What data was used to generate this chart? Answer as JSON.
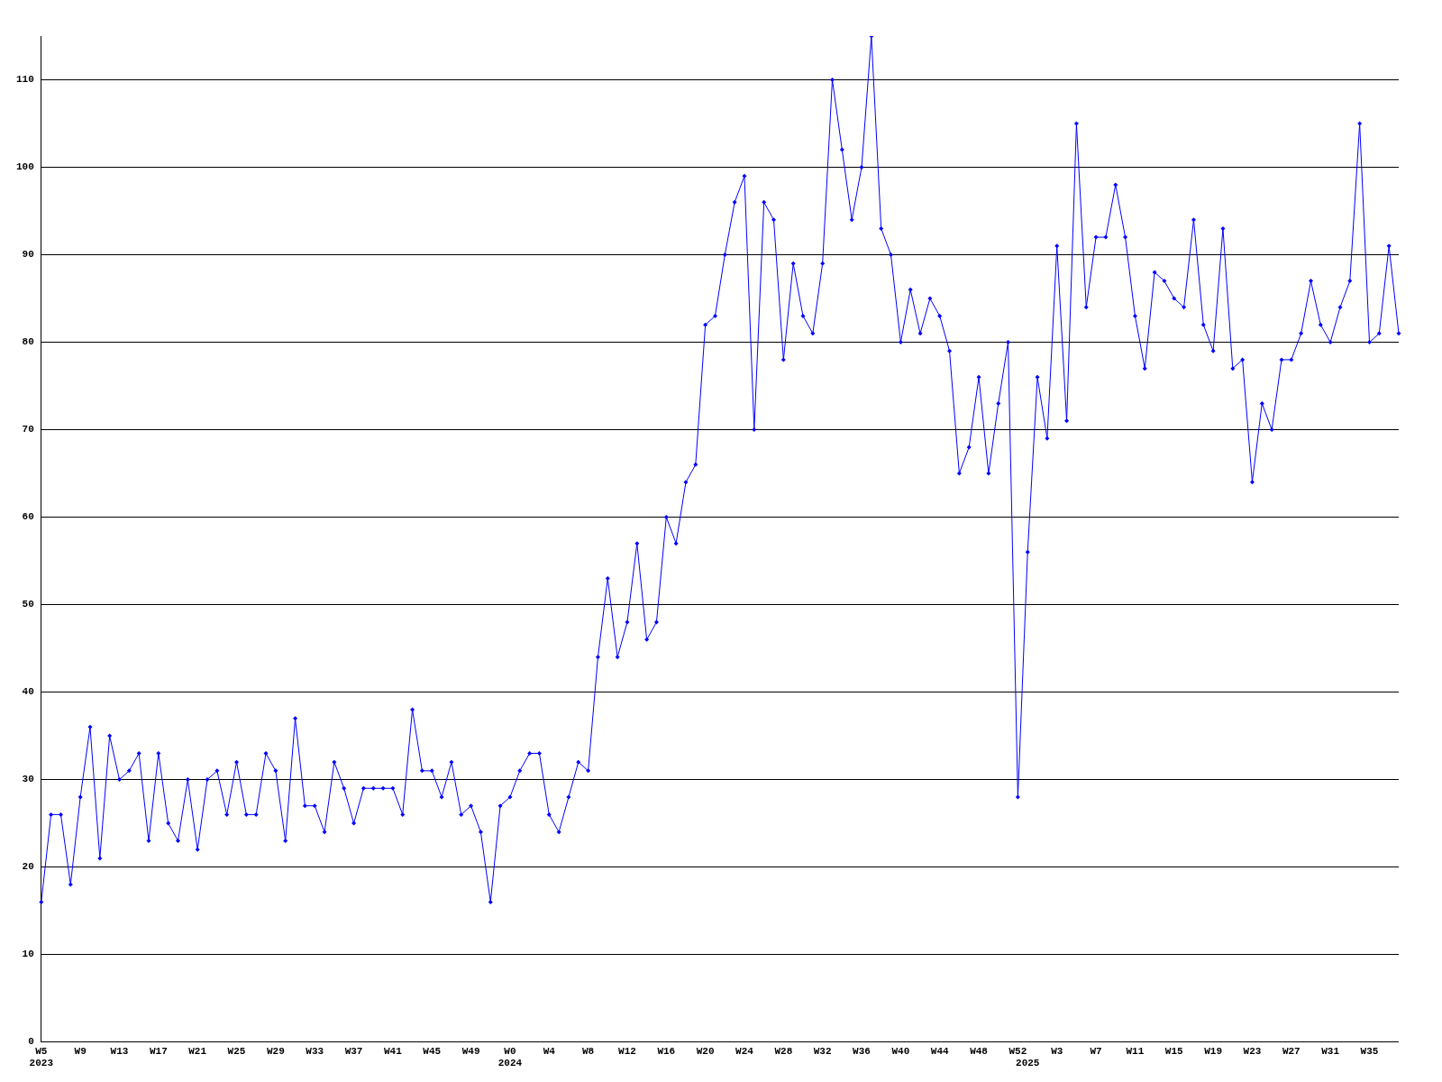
{
  "chart_data": {
    "type": "line",
    "categories": [
      "W5\n2023",
      null,
      null,
      null,
      "W9",
      null,
      null,
      null,
      "W13",
      null,
      null,
      null,
      "W17",
      null,
      null,
      null,
      "W21",
      null,
      null,
      null,
      "W25",
      null,
      null,
      null,
      "W29",
      null,
      null,
      null,
      "W33",
      null,
      null,
      null,
      "W37",
      null,
      null,
      null,
      "W41",
      null,
      null,
      null,
      "W45",
      null,
      null,
      null,
      "W49",
      null,
      null,
      null,
      "W0\n2024",
      null,
      null,
      null,
      "W4",
      null,
      null,
      null,
      "W8",
      null,
      null,
      null,
      "W12",
      null,
      null,
      null,
      "W16",
      null,
      null,
      null,
      "W20",
      null,
      null,
      null,
      "W24",
      null,
      null,
      null,
      "W28",
      null,
      null,
      null,
      "W32",
      null,
      null,
      null,
      "W36",
      null,
      null,
      null,
      "W40",
      null,
      null,
      null,
      "W44",
      null,
      null,
      null,
      "W48",
      null,
      null,
      null,
      "W52",
      "\n2025",
      null,
      null,
      "W3",
      null,
      null,
      null,
      "W7",
      null,
      null,
      null,
      "W11",
      null,
      null,
      null,
      "W15",
      null,
      null,
      null,
      "W19",
      null,
      null,
      null,
      "W23",
      null,
      null,
      null,
      "W27",
      null,
      null,
      null,
      "W31",
      null,
      null,
      null,
      "W35",
      null,
      null,
      null
    ],
    "series": [
      {
        "color": "#0000ff",
        "values": [
          16,
          26,
          26,
          18,
          28,
          36,
          21,
          35,
          30,
          31,
          33,
          23,
          33,
          25,
          23,
          30,
          22,
          30,
          31,
          26,
          32,
          26,
          26,
          33,
          31,
          23,
          37,
          27,
          27,
          24,
          32,
          29,
          25,
          29,
          29,
          29,
          29,
          26,
          38,
          31,
          31,
          28,
          32,
          26,
          27,
          24,
          16,
          27,
          28,
          31,
          33,
          33,
          26,
          24,
          28,
          32,
          31,
          44,
          53,
          44,
          48,
          57,
          46,
          48,
          60,
          57,
          64,
          66,
          82,
          83,
          90,
          96,
          99,
          70,
          96,
          94,
          78,
          89,
          83,
          81,
          89,
          110,
          102,
          94,
          100,
          115,
          93,
          90,
          80,
          86,
          81,
          85,
          83,
          79,
          65,
          68,
          76,
          65,
          73,
          80,
          28,
          56,
          76,
          69,
          91,
          71,
          105,
          84,
          92,
          92,
          98,
          92,
          83,
          77,
          88,
          87,
          85,
          84,
          94,
          82,
          79,
          93,
          77,
          78,
          64,
          73,
          70,
          78,
          78,
          81,
          87,
          82,
          80,
          84,
          87,
          105,
          80,
          81,
          91,
          81
        ]
      }
    ],
    "ylim": [
      0,
      115
    ],
    "yticks": [
      0,
      10,
      20,
      30,
      40,
      50,
      60,
      70,
      80,
      90,
      100,
      110
    ],
    "grid": "y",
    "legend": false,
    "marker": "diamond",
    "line_style": "solid"
  }
}
